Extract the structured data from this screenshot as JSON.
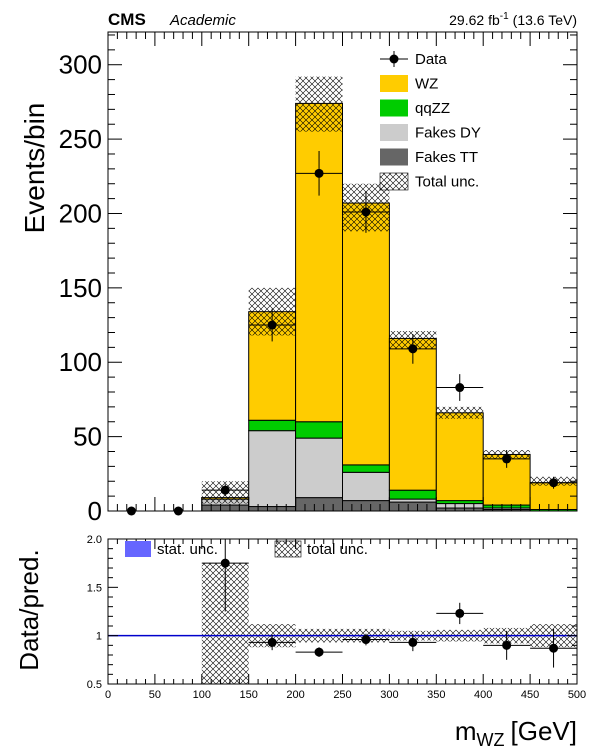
{
  "header": {
    "experiment": "CMS",
    "status": "Academic",
    "lumi_value": "29.62 fb",
    "lumi_exp": "-1",
    "lumi_energy": "(13.6 TeV)"
  },
  "colors": {
    "wz": "#ffcc00",
    "qqzz": "#00cc00",
    "fakes_dy": "#cccccc",
    "fakes_tt": "#666666",
    "stat_unc": "#6666ff",
    "ratio_line": "#0000cc"
  },
  "chart_data": [
    {
      "type": "bar",
      "stacked": true,
      "xlabel": "m",
      "xlabel_sub": "WZ",
      "xlabel_unit": "[GeV]",
      "ylabel": "Events/bin",
      "xlim": [
        0,
        500
      ],
      "ylim": [
        0,
        322
      ],
      "x_ticks": [
        0,
        50,
        100,
        150,
        200,
        250,
        300,
        350,
        400,
        450,
        500
      ],
      "y_ticks": [
        0,
        50,
        100,
        150,
        200,
        250,
        300
      ],
      "bin_edges": [
        0,
        50,
        100,
        150,
        200,
        250,
        300,
        350,
        400,
        450,
        500
      ],
      "series": [
        {
          "name": "Fakes TT",
          "color_key": "fakes_tt",
          "values": [
            0,
            0,
            4,
            3,
            9,
            7,
            6,
            2,
            1,
            0
          ]
        },
        {
          "name": "Fakes DY",
          "color_key": "fakes_dy",
          "values": [
            0,
            0,
            4,
            51,
            40,
            19,
            2,
            3,
            1,
            0
          ]
        },
        {
          "name": "qqZZ",
          "color_key": "qqzz",
          "values": [
            0,
            0,
            0,
            7,
            11,
            5,
            6,
            2,
            2,
            1
          ]
        },
        {
          "name": "WZ",
          "color_key": "wz",
          "values": [
            0,
            0,
            1,
            73,
            214,
            176,
            102,
            59,
            34,
            18
          ]
        }
      ],
      "total_unc": [
        {
          "low": 0,
          "high": 0
        },
        {
          "low": 0,
          "high": 0
        },
        {
          "low": 5,
          "high": 20
        },
        {
          "low": 118,
          "high": 150
        },
        {
          "low": 255,
          "high": 292
        },
        {
          "low": 188,
          "high": 220
        },
        {
          "low": 109,
          "high": 121
        },
        {
          "low": 62,
          "high": 70
        },
        {
          "low": 35,
          "high": 41
        },
        {
          "low": 17,
          "high": 23
        }
      ],
      "data": {
        "name": "Data",
        "x": [
          25,
          75,
          125,
          175,
          225,
          275,
          325,
          375,
          425,
          475
        ],
        "y": [
          0,
          0,
          14,
          125,
          227,
          201,
          109,
          83,
          35,
          19
        ],
        "err": [
          0,
          0,
          4,
          11,
          15,
          14,
          10,
          9,
          6,
          4
        ]
      },
      "legend": {
        "placement": "top-right",
        "entries": [
          "Data",
          "WZ",
          "qqZZ",
          "Fakes DY",
          "Fakes TT",
          "Total unc."
        ]
      }
    },
    {
      "type": "scatter",
      "ylabel": "Data/pred.",
      "xlim": [
        0,
        500
      ],
      "ylim": [
        0.5,
        2.0
      ],
      "y_ticks": [
        "0.5",
        "1",
        "1.5",
        "2.0"
      ],
      "x_ticks": [
        "0",
        "50",
        "100",
        "150",
        "200",
        "250",
        "300",
        "350",
        "400",
        "450",
        "500"
      ],
      "reference_line": 1.0,
      "ratio": {
        "x": [
          125,
          175,
          225,
          275,
          325,
          375,
          425,
          475
        ],
        "y": [
          1.75,
          0.93,
          0.83,
          0.96,
          0.93,
          1.23,
          0.9,
          0.87
        ],
        "err": [
          0.5,
          0.08,
          0.05,
          0.06,
          0.09,
          0.11,
          0.15,
          0.2
        ]
      },
      "total_unc_band": [
        {
          "x0": 100,
          "x1": 150,
          "low": 0.5,
          "high": 1.75
        },
        {
          "x0": 150,
          "x1": 200,
          "low": 0.88,
          "high": 1.12
        },
        {
          "x0": 200,
          "x1": 250,
          "low": 0.93,
          "high": 1.07
        },
        {
          "x0": 250,
          "x1": 300,
          "low": 0.93,
          "high": 1.07
        },
        {
          "x0": 300,
          "x1": 350,
          "low": 0.95,
          "high": 1.05
        },
        {
          "x0": 350,
          "x1": 400,
          "low": 0.94,
          "high": 1.06
        },
        {
          "x0": 400,
          "x1": 450,
          "low": 0.92,
          "high": 1.08
        },
        {
          "x0": 450,
          "x1": 500,
          "low": 0.88,
          "high": 1.12
        }
      ],
      "legend": {
        "placement": "top-left",
        "entries": [
          "stat. unc.",
          "total unc."
        ]
      }
    }
  ]
}
